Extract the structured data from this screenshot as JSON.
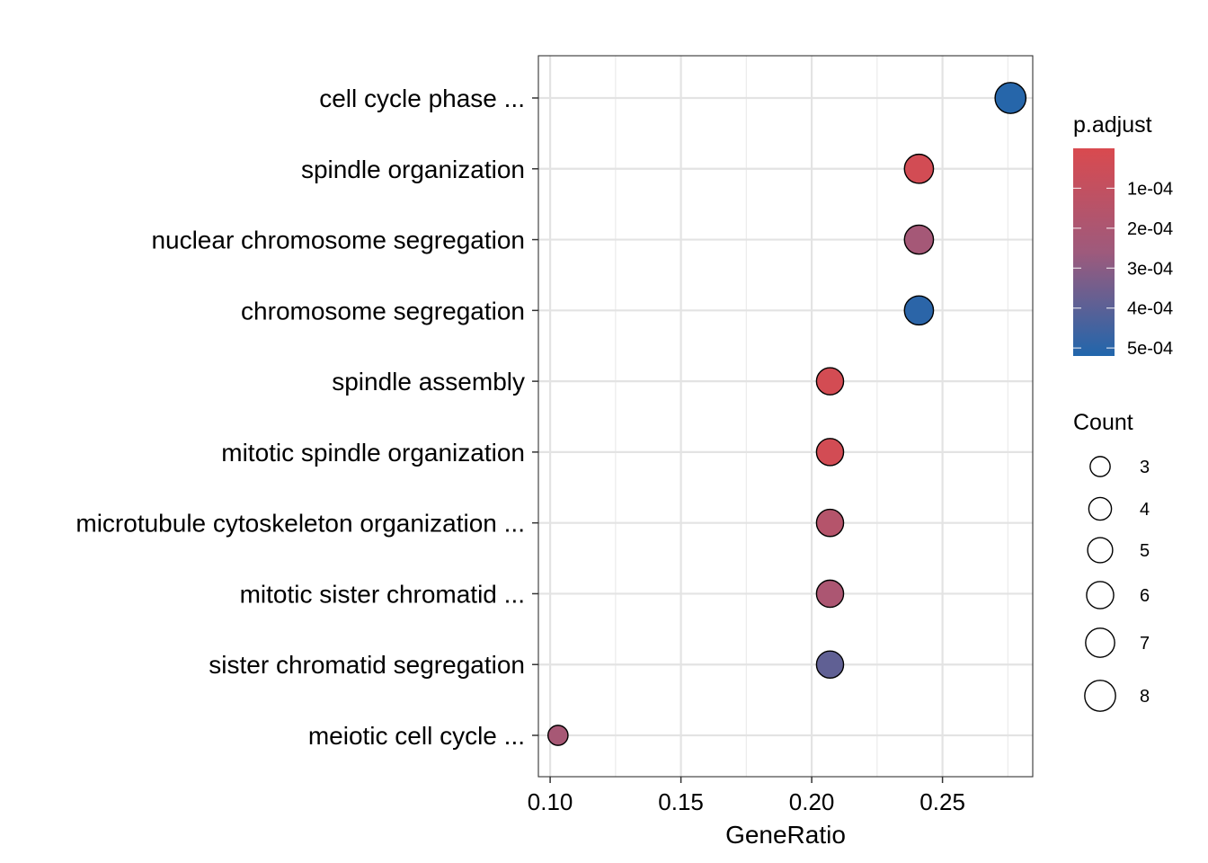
{
  "chart_data": {
    "type": "scatter",
    "title": "",
    "xlabel": "GeneRatio",
    "ylabel": "",
    "xlim": [
      0.0955,
      0.2845
    ],
    "x_ticks": [
      {
        "value": 0.1,
        "label": "0.10"
      },
      {
        "value": 0.15,
        "label": "0.15"
      },
      {
        "value": 0.2,
        "label": "0.20"
      },
      {
        "value": 0.25,
        "label": "0.25"
      }
    ],
    "grid": true,
    "categories": [
      "cell cycle phase ...",
      "spindle organization",
      "nuclear chromosome segregation",
      "chromosome segregation",
      "spindle assembly",
      "mitotic spindle organization",
      "microtubule cytoskeleton organization ...",
      "mitotic sister chromatid ...",
      "sister chromatid segregation",
      "meiotic cell cycle ..."
    ],
    "points": [
      {
        "term": "cell cycle phase ...",
        "gene_ratio": 0.276,
        "count": 8,
        "p_adjust": 0.00051
      },
      {
        "term": "spindle organization",
        "gene_ratio": 0.241,
        "count": 7,
        "p_adjust": 3e-05
      },
      {
        "term": "nuclear chromosome segregation",
        "gene_ratio": 0.241,
        "count": 7,
        "p_adjust": 0.00023
      },
      {
        "term": "chromosome segregation",
        "gene_ratio": 0.241,
        "count": 7,
        "p_adjust": 0.0005
      },
      {
        "term": "spindle assembly",
        "gene_ratio": 0.207,
        "count": 6,
        "p_adjust": 2.5e-05
      },
      {
        "term": "mitotic spindle organization",
        "gene_ratio": 0.207,
        "count": 6,
        "p_adjust": 3e-05
      },
      {
        "term": "microtubule cytoskeleton organization ...",
        "gene_ratio": 0.207,
        "count": 6,
        "p_adjust": 0.00016
      },
      {
        "term": "mitotic sister chromatid ...",
        "gene_ratio": 0.207,
        "count": 6,
        "p_adjust": 0.0002
      },
      {
        "term": "sister chromatid segregation",
        "gene_ratio": 0.207,
        "count": 6,
        "p_adjust": 0.00039
      },
      {
        "term": "meiotic cell cycle ...",
        "gene_ratio": 0.103,
        "count": 3,
        "p_adjust": 0.00022
      }
    ],
    "color_legend": {
      "title": "p.adjust",
      "low_color": "#D94A4F",
      "high_color": "#2166AC",
      "range": [
        0.0,
        0.00052
      ],
      "ticks": [
        {
          "value": 0.0001,
          "label": "1e-04"
        },
        {
          "value": 0.0002,
          "label": "2e-04"
        },
        {
          "value": 0.0003,
          "label": "3e-04"
        },
        {
          "value": 0.0004,
          "label": "4e-04"
        },
        {
          "value": 0.0005,
          "label": "5e-04"
        }
      ]
    },
    "size_legend": {
      "title": "Count",
      "entries": [
        {
          "value": 3,
          "label": "3"
        },
        {
          "value": 4,
          "label": "4"
        },
        {
          "value": 5,
          "label": "5"
        },
        {
          "value": 6,
          "label": "6"
        },
        {
          "value": 7,
          "label": "7"
        },
        {
          "value": 8,
          "label": "8"
        }
      ]
    },
    "legend_position": "right"
  }
}
